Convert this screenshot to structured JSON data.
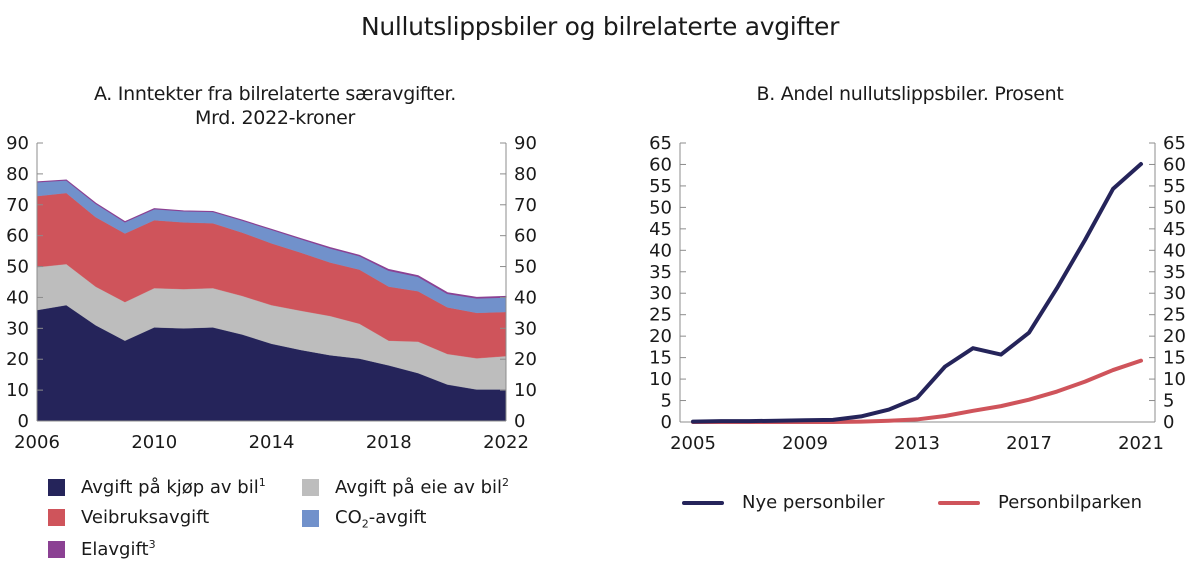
{
  "title": "Nullutslippsbiler og bilrelaterte avgifter",
  "panel_a": {
    "title_line1": "A. Inntekter fra bilrelaterte særavgifter.",
    "title_line2": "Mrd. 2022-kroner",
    "legend": [
      {
        "label": "Avgift på kjøp av bil",
        "sup": "1",
        "color": "#25245A"
      },
      {
        "label": "Avgift på eie av bil",
        "sup": "2",
        "color": "#BDBDBD"
      },
      {
        "label": "Veibruksavgift",
        "sup": "",
        "color": "#CF545B"
      },
      {
        "label_pre": "CO",
        "sub": "2",
        "label_post": "-avgift",
        "color": "#7191CB"
      },
      {
        "label": "Elavgift",
        "sup": "3",
        "color": "#8B4193"
      }
    ]
  },
  "panel_b": {
    "title": "B. Andel nullutslippsbiler. Prosent",
    "legend": [
      {
        "label": "Nye personbiler",
        "color": "#25245A"
      },
      {
        "label": "Personbilparken",
        "color": "#CF545B"
      }
    ]
  },
  "chart_data": [
    {
      "type": "area",
      "stacked": true,
      "title": "A. Inntekter fra bilrelaterte særavgifter. Mrd. 2022-kroner",
      "xlabel": "",
      "ylabel": "Mrd. 2022-kroner",
      "x": [
        2006,
        2007,
        2008,
        2009,
        2010,
        2011,
        2012,
        2013,
        2014,
        2015,
        2016,
        2017,
        2018,
        2019,
        2020,
        2021,
        2022
      ],
      "xticks": [
        2006,
        2010,
        2014,
        2018,
        2022
      ],
      "ylim": [
        0,
        90
      ],
      "yticks": [
        0,
        10,
        20,
        30,
        40,
        50,
        60,
        70,
        80,
        90
      ],
      "dual_y_axis": true,
      "grid": false,
      "legend_position": "bottom",
      "series": [
        {
          "name": "Avgift på kjøp av bil",
          "color": "#25245A",
          "values": [
            35.9,
            37.5,
            31.0,
            26.0,
            30.3,
            30.0,
            30.3,
            28.0,
            25.0,
            23.0,
            21.3,
            20.2,
            18.0,
            15.5,
            11.8,
            10.2,
            10.2
          ]
        },
        {
          "name": "Avgift på eie av bil",
          "color": "#BDBDBD",
          "values": [
            13.9,
            13.3,
            12.5,
            12.5,
            12.7,
            12.7,
            12.7,
            12.5,
            12.5,
            12.7,
            12.7,
            11.3,
            8.0,
            10.2,
            9.9,
            10.1,
            10.8
          ]
        },
        {
          "name": "Veibruksavgift",
          "color": "#CF545B",
          "values": [
            23.0,
            23.0,
            22.5,
            22.2,
            22.0,
            21.6,
            21.0,
            20.5,
            20.0,
            18.8,
            17.3,
            17.5,
            17.5,
            16.3,
            15.1,
            14.7,
            14.3
          ]
        },
        {
          "name": "CO2-avgift",
          "color": "#7191CB",
          "values": [
            4.6,
            4.2,
            4.5,
            3.8,
            3.7,
            3.7,
            3.8,
            4.0,
            4.5,
            4.5,
            4.7,
            4.5,
            5.3,
            4.8,
            4.5,
            4.8,
            4.8
          ]
        },
        {
          "name": "Elavgift",
          "color": "#8B4193",
          "values": [
            0,
            0,
            0,
            0,
            0,
            0,
            0,
            0,
            0,
            0,
            0.1,
            0.1,
            0.2,
            0.2,
            0.2,
            0.2,
            0.2
          ]
        }
      ]
    },
    {
      "type": "line",
      "title": "B. Andel nullutslippsbiler. Prosent",
      "xlabel": "",
      "ylabel": "Prosent",
      "x": [
        2005,
        2006,
        2007,
        2008,
        2009,
        2010,
        2011,
        2012,
        2013,
        2014,
        2015,
        2016,
        2017,
        2018,
        2019,
        2020,
        2021
      ],
      "xticks": [
        2005,
        2009,
        2013,
        2017,
        2021
      ],
      "ylim": [
        0,
        65
      ],
      "yticks": [
        0,
        5,
        10,
        15,
        20,
        25,
        30,
        35,
        40,
        45,
        50,
        55,
        60,
        65
      ],
      "dual_y_axis": true,
      "grid": false,
      "legend_position": "bottom",
      "series": [
        {
          "name": "Nye personbiler",
          "color": "#25245A",
          "values": [
            0.1,
            0.2,
            0.2,
            0.3,
            0.4,
            0.5,
            1.3,
            2.9,
            5.6,
            12.9,
            17.2,
            15.7,
            20.8,
            31.2,
            42.4,
            54.3,
            60.1
          ]
        },
        {
          "name": "Personbilparken",
          "color": "#CF545B",
          "values": [
            0.0,
            0.0,
            0.0,
            0.0,
            0.0,
            0.0,
            0.1,
            0.3,
            0.6,
            1.4,
            2.6,
            3.7,
            5.2,
            7.1,
            9.4,
            12.1,
            14.3
          ]
        }
      ]
    }
  ]
}
